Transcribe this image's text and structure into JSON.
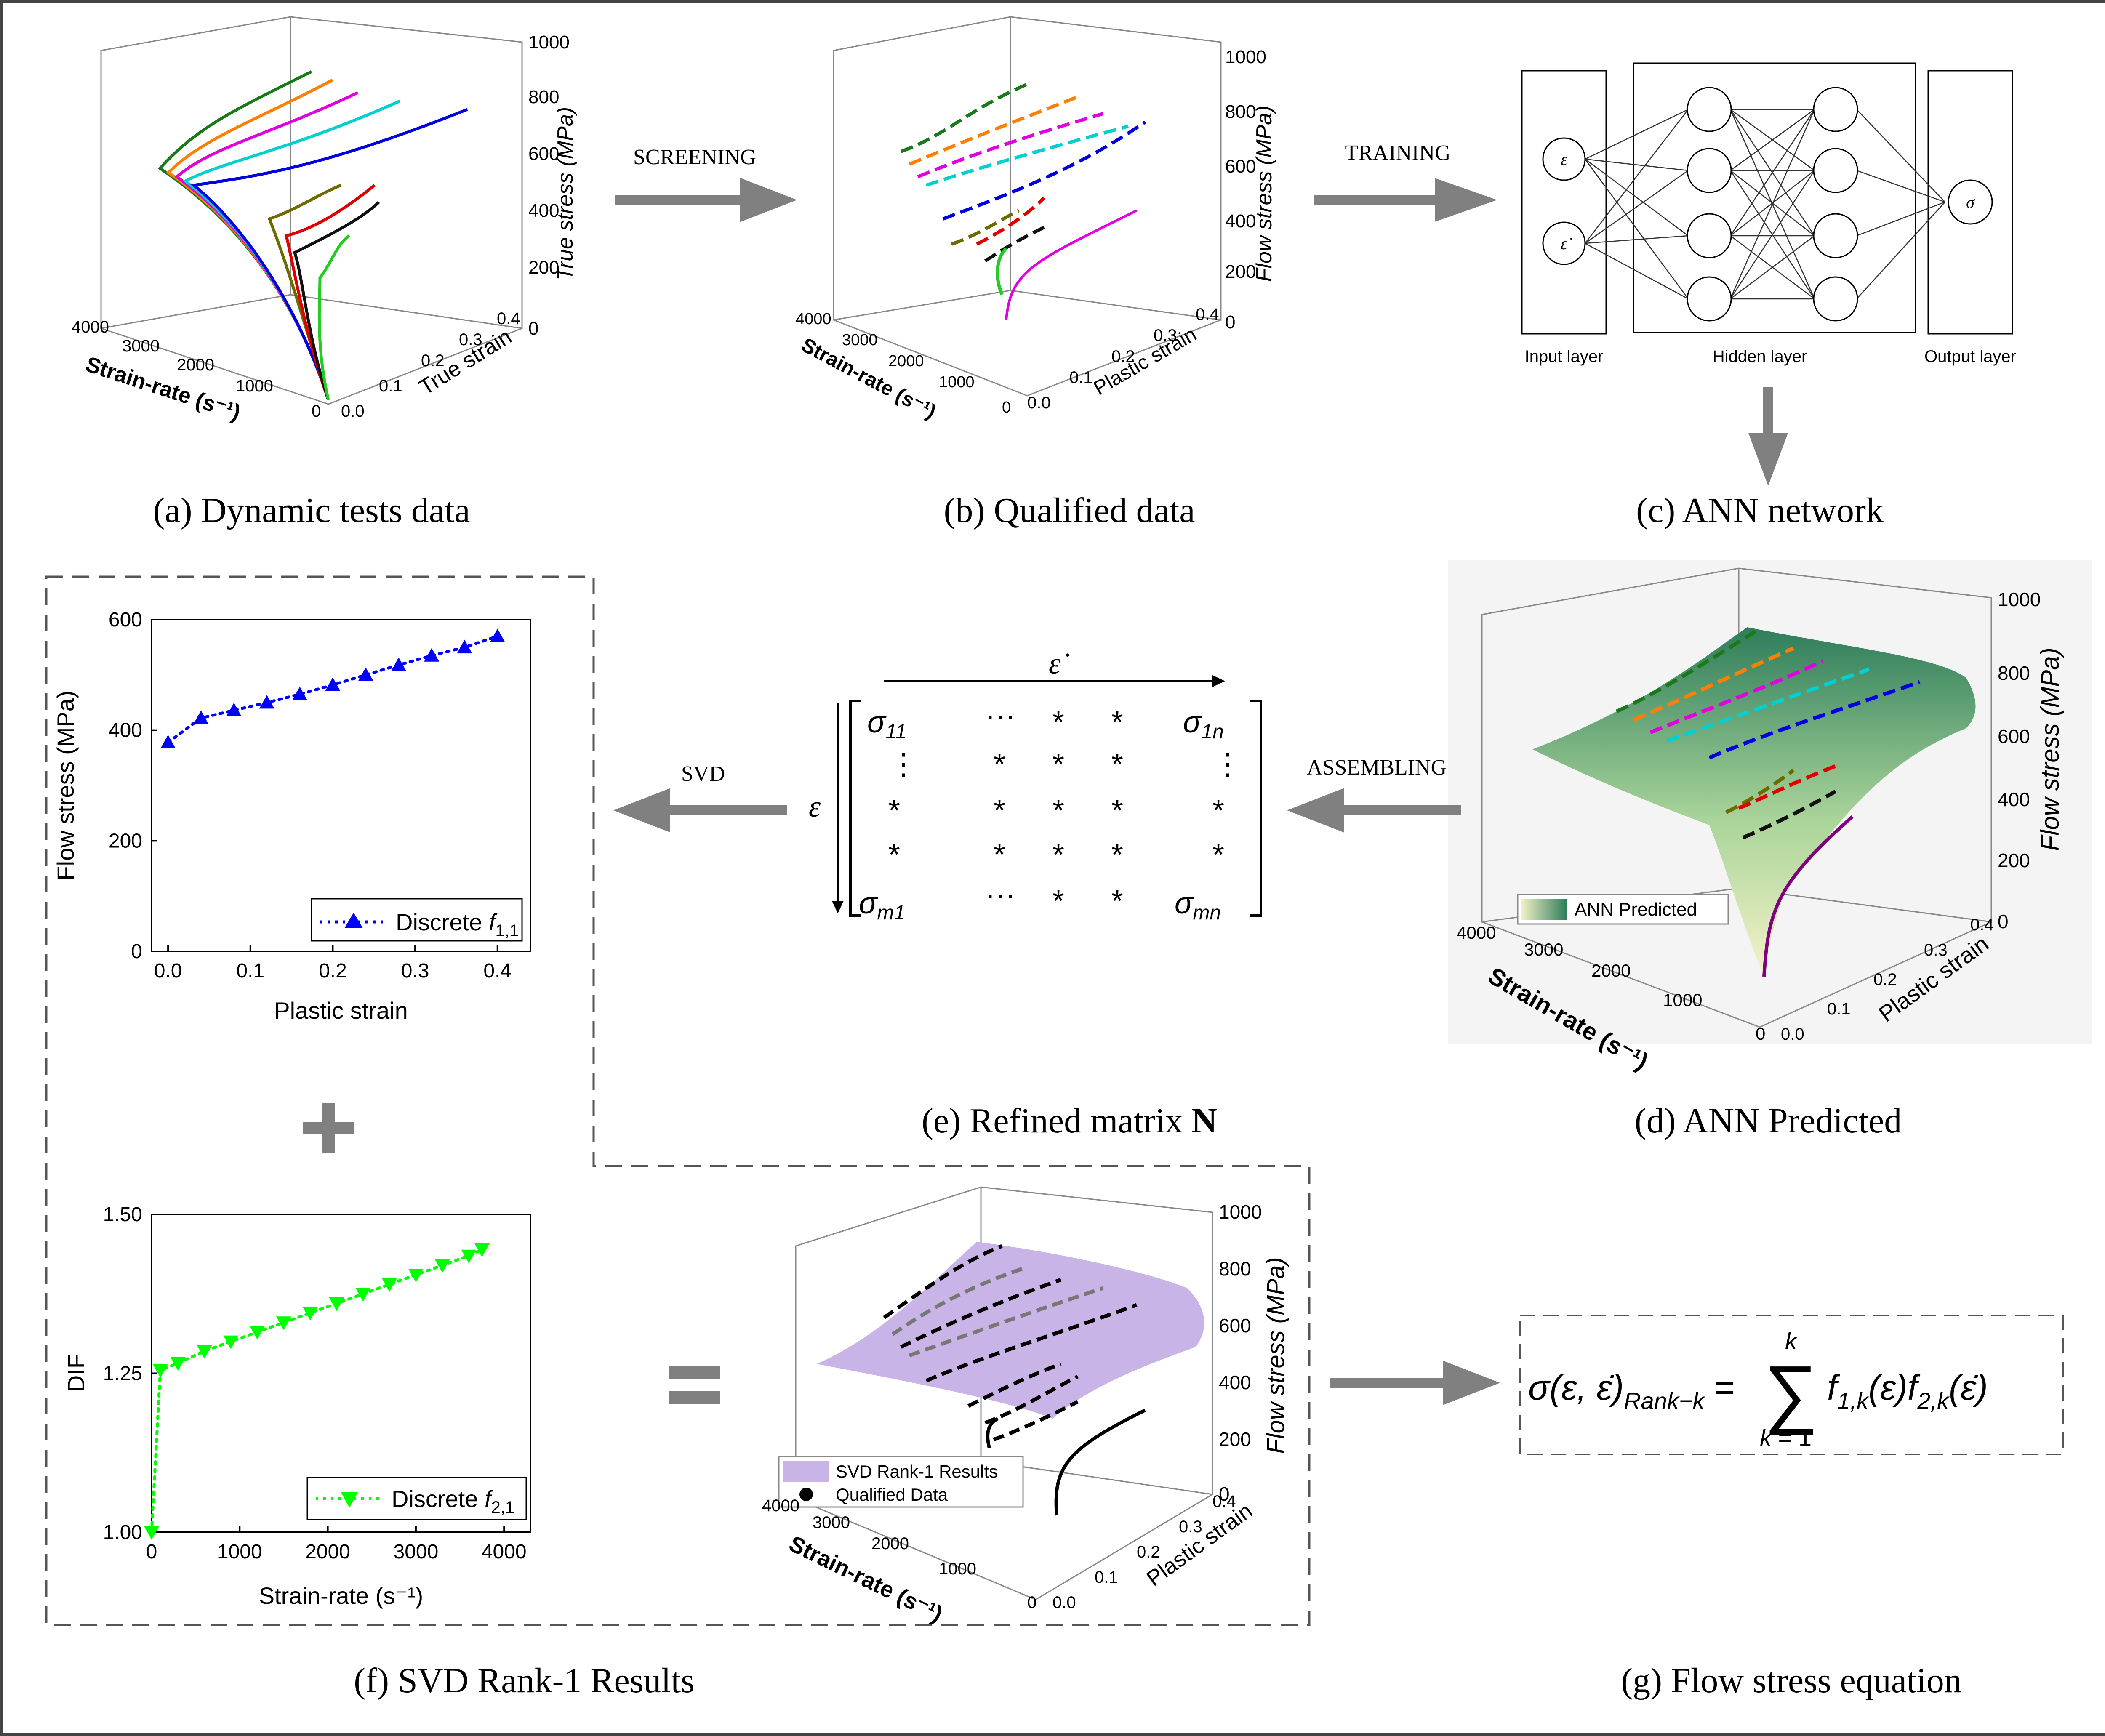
{
  "panels": {
    "a": {
      "caption": "(a) Dynamic tests data",
      "z_label": "True stress (MPa)",
      "x_label": "True strain",
      "y_label": "Strain-rate (s⁻¹)",
      "z_ticks": [
        "0",
        "200",
        "400",
        "600",
        "800",
        "1000"
      ],
      "x_ticks": [
        "0.0",
        "0.1",
        "0.2",
        "0.3",
        "0.4"
      ],
      "y_ticks": [
        "0",
        "1000",
        "2000",
        "3000",
        "4000"
      ]
    },
    "b": {
      "caption": "(b) Qualified data",
      "z_label": "Flow stress (MPa)",
      "x_label": "Plastic strain",
      "y_label": "Strain-rate (s⁻¹)",
      "z_ticks": [
        "0",
        "200",
        "400",
        "600",
        "800",
        "1000"
      ],
      "x_ticks": [
        "0.0",
        "0.1",
        "0.2",
        "0.3",
        "0.4"
      ],
      "y_ticks": [
        "0",
        "1000",
        "2000",
        "3000",
        "4000"
      ]
    },
    "c": {
      "caption": "(c) ANN network",
      "input_layer": "Input layer",
      "hidden_layer": "Hidden layer",
      "output_layer": "Output layer",
      "input_nodes": [
        "ε",
        "ε̇"
      ],
      "output_node": "σ"
    },
    "d": {
      "caption": "(d) ANN Predicted",
      "legend": "ANN Predicted",
      "z_label": "Flow stress (MPa)",
      "x_label": "Plastic strain",
      "y_label": "Strain-rate (s⁻¹)",
      "z_ticks": [
        "0",
        "200",
        "400",
        "600",
        "800",
        "1000"
      ],
      "x_ticks": [
        "0.0",
        "0.1",
        "0.2",
        "0.3",
        "0.4"
      ],
      "y_ticks": [
        "0",
        "1000",
        "2000",
        "3000",
        "4000"
      ]
    },
    "e": {
      "caption_prefix": "(e) Refined matrix ",
      "caption_bold": "N",
      "top_label": "ε̇",
      "side_label": "ε"
    },
    "f": {
      "caption": "(f) SVD Rank-1 Results",
      "legend_surface": "SVD Rank-1 Results",
      "legend_points": "Qualified Data",
      "z_label": "Flow stress (MPa)",
      "x_label": "Plastic strain",
      "y_label": "Strain-rate (s⁻¹)",
      "z_ticks": [
        "0",
        "200",
        "400",
        "600",
        "800",
        "1000"
      ],
      "x_ticks": [
        "0.0",
        "0.1",
        "0.2",
        "0.3",
        "0.4"
      ],
      "y_ticks": [
        "0",
        "1000",
        "2000",
        "3000",
        "4000"
      ]
    },
    "g": {
      "caption": "(g) Flow stress equation"
    }
  },
  "arrows": {
    "screening": "SCREENING",
    "training": "TRAINING",
    "assembling": "ASSEMBLING",
    "svd": "SVD"
  },
  "chart_data": [
    {
      "type": "line",
      "title": "",
      "xlabel": "Plastic strain",
      "ylabel": "Flow stress (MPa)",
      "xlim": [
        -0.02,
        0.44
      ],
      "ylim": [
        0,
        600
      ],
      "xticks": [
        "0.0",
        "0.1",
        "0.2",
        "0.3",
        "0.4"
      ],
      "yticks": [
        "0",
        "200",
        "400",
        "600"
      ],
      "series": [
        {
          "name": "Discrete f1,1",
          "legend_prefix": "Discrete ",
          "legend_italic": "f",
          "legend_sub": "1,1",
          "x": [
            0.0,
            0.04,
            0.08,
            0.12,
            0.16,
            0.2,
            0.24,
            0.28,
            0.32,
            0.36,
            0.4
          ],
          "y": [
            378,
            422,
            436,
            450,
            465,
            482,
            500,
            518,
            535,
            550,
            570
          ]
        }
      ]
    },
    {
      "type": "line",
      "title": "",
      "xlabel": "Strain-rate (s⁻¹)",
      "ylabel": "DIF",
      "xlim": [
        0,
        4300
      ],
      "ylim": [
        1.0,
        1.5
      ],
      "xticks": [
        "0",
        "1000",
        "2000",
        "3000",
        "4000"
      ],
      "yticks": [
        "1.00",
        "1.25",
        "1.50"
      ],
      "series": [
        {
          "name": "Discrete f2,1",
          "legend_prefix": "Discrete ",
          "legend_italic": "f",
          "legend_sub": "2,1",
          "x": [
            0,
            100,
            300,
            600,
            900,
            1200,
            1500,
            1800,
            2100,
            2400,
            2700,
            3000,
            3300,
            3600,
            3750
          ],
          "y": [
            1.0,
            1.255,
            1.266,
            1.285,
            1.3,
            1.315,
            1.33,
            1.345,
            1.36,
            1.375,
            1.39,
            1.405,
            1.42,
            1.435,
            1.445
          ]
        }
      ]
    }
  ],
  "colors": {
    "arrow": "#808080",
    "blue": "#0000FF",
    "green": "#00FF00",
    "surface_svd": "#C8B4E6",
    "surface_ann_top": "#2E7D5B",
    "surface_ann_bottom": "#F5F5C8"
  }
}
